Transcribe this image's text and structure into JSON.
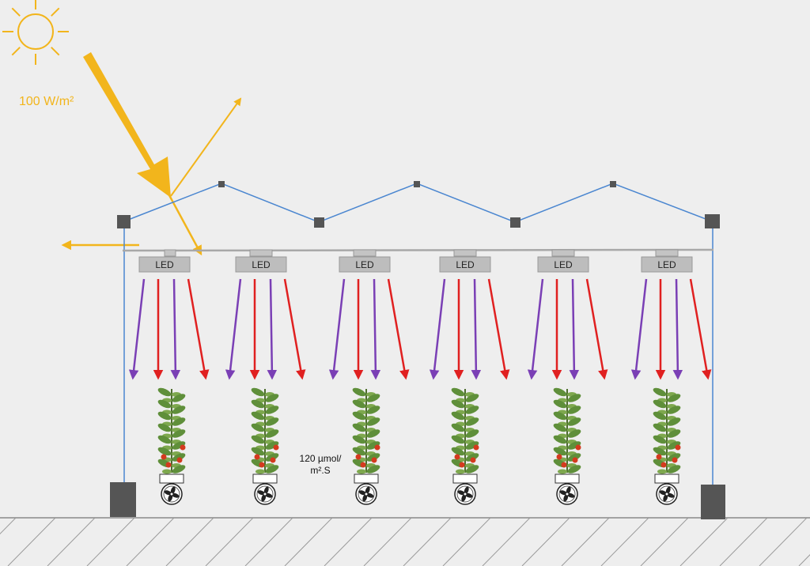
{
  "colors": {
    "background": "#eeeeee",
    "sun": "#f2b51c",
    "frame": "#4a86d0",
    "joint": "#555555",
    "fixture": "#bdbdbd",
    "purple_ray": "#7a3fb5",
    "red_ray": "#e02020",
    "ground": "#888888",
    "leaf": "#5f8f3a",
    "fruit": "#d43a1e"
  },
  "sun": {
    "icon": "sun-icon",
    "irradiance_label": "100 W/m²"
  },
  "led_fixtures": [
    {
      "label": "LED"
    },
    {
      "label": "LED"
    },
    {
      "label": "LED"
    },
    {
      "label": "LED"
    },
    {
      "label": "LED"
    },
    {
      "label": "LED"
    }
  ],
  "plants": [
    {
      "icon": "tomato-plant-icon",
      "fan_icon": "fan-icon"
    },
    {
      "icon": "tomato-plant-icon",
      "fan_icon": "fan-icon"
    },
    {
      "icon": "tomato-plant-icon",
      "fan_icon": "fan-icon"
    },
    {
      "icon": "tomato-plant-icon",
      "fan_icon": "fan-icon"
    },
    {
      "icon": "tomato-plant-icon",
      "fan_icon": "fan-icon"
    },
    {
      "icon": "tomato-plant-icon",
      "fan_icon": "fan-icon"
    }
  ],
  "ppfd_label": {
    "line1": "120 µmol/",
    "line2": "m².S"
  }
}
